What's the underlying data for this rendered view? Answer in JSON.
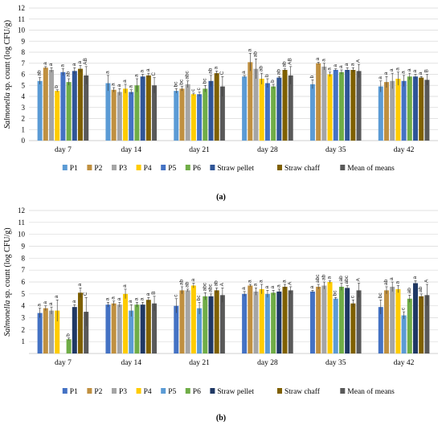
{
  "chart_data": [
    {
      "type": "bar",
      "panel_label": "(a)",
      "ylabel_prefix": "Salmonella",
      "ylabel_suffix": " sp. count (log CFU/g)",
      "ylim": [
        0,
        12
      ],
      "yticks": [
        0,
        1,
        2,
        3,
        4,
        5,
        6,
        7,
        8,
        9,
        10,
        11,
        12
      ],
      "grid": true,
      "legend_position": "bottom",
      "categories": [
        "day 7",
        "day 14",
        "day 21",
        "day 28",
        "day 35",
        "day 42"
      ],
      "series": [
        {
          "name": "P1",
          "color": "#5b9bd5",
          "values": [
            5.4,
            5.2,
            4.5,
            5.8,
            5.1,
            4.9
          ],
          "errors": [
            0.3,
            0.7,
            0.2,
            0.1,
            0.4,
            0.5
          ],
          "labels": [
            "ab",
            "a",
            "bc",
            "a",
            "b",
            "a"
          ]
        },
        {
          "name": "P2",
          "color": "#c09040",
          "values": [
            6.6,
            4.6,
            4.7,
            7.1,
            7.0,
            5.3
          ],
          "errors": [
            0.1,
            0.2,
            0.2,
            0.8,
            0.1,
            0.5
          ],
          "labels": [
            "a",
            "a",
            "bc",
            "a",
            "a",
            "a"
          ]
        },
        {
          "name": "P3",
          "color": "#a5a5a5",
          "values": [
            6.4,
            4.4,
            5.1,
            6.5,
            6.7,
            5.4
          ],
          "errors": [
            0.2,
            0.3,
            0.3,
            0.9,
            0.3,
            0.7
          ],
          "labels": [
            "a",
            "a",
            "abc",
            "ab",
            "a",
            "a"
          ]
        },
        {
          "name": "P4",
          "color": "#ffcc00",
          "values": [
            4.5,
            4.7,
            4.2,
            5.6,
            6.0,
            5.6
          ],
          "errors": [
            0.1,
            0.4,
            0.1,
            0.5,
            0.2,
            0.6
          ],
          "labels": [
            "b",
            "a",
            "c",
            "ab",
            "a",
            "a"
          ]
        },
        {
          "name": "P5",
          "color": "#4472c4",
          "values": [
            6.2,
            4.4,
            4.2,
            5.2,
            6.4,
            5.4
          ],
          "errors": [
            0.3,
            0.2,
            0.2,
            0.4,
            0.1,
            0.5
          ],
          "labels": [
            "a",
            "a",
            "c",
            "b",
            "a",
            "a"
          ]
        },
        {
          "name": "P6",
          "color": "#70ad47",
          "values": [
            5.3,
            5.0,
            4.7,
            4.9,
            6.2,
            5.8
          ],
          "errors": [
            0.3,
            0.6,
            0.3,
            0.2,
            0.2,
            0.3
          ],
          "labels": [
            "ab",
            "a",
            "bc",
            "b",
            "a",
            "a"
          ]
        },
        {
          "name": "Straw pellet",
          "color": "#2f5597",
          "values": [
            6.3,
            5.8,
            5.4,
            5.7,
            6.4,
            5.8
          ],
          "errors": [
            0.3,
            0.2,
            0.5,
            0.1,
            0.2,
            0.2
          ],
          "labels": [
            "a",
            "a",
            "ab",
            "ab",
            "a",
            "a"
          ]
        },
        {
          "name": "Straw chaff",
          "color": "#7f6000",
          "values": [
            6.5,
            5.9,
            6.1,
            6.4,
            6.4,
            5.7
          ],
          "errors": [
            0.3,
            0.2,
            0.2,
            0.1,
            0.2,
            0.1
          ],
          "labels": [
            "a",
            "a",
            "a",
            "ab",
            "a",
            "a"
          ]
        },
        {
          "name": "Mean of means",
          "color": "#595959",
          "values": [
            5.9,
            5.0,
            4.9,
            5.9,
            6.3,
            5.5
          ],
          "errors": [
            0.8,
            0.7,
            0.9,
            0.8,
            0.6,
            0.5
          ],
          "labels": [
            "AB",
            "C",
            "C",
            "AB",
            "A",
            "B"
          ]
        }
      ]
    },
    {
      "type": "bar",
      "panel_label": "(b)",
      "ylabel_prefix": "Salmonella",
      "ylabel_suffix": " sp. count (log CFU/g)",
      "ylim": [
        0,
        12
      ],
      "yticks": [
        1,
        2,
        3,
        4,
        5,
        6,
        7,
        8,
        9,
        10,
        11,
        12
      ],
      "grid": true,
      "legend_position": "bottom",
      "categories": [
        "day 7",
        "day 14",
        "day 21",
        "day 28",
        "day 35",
        "day 42"
      ],
      "series": [
        {
          "name": "P1",
          "color": "#4472c4",
          "values": [
            3.4,
            4.1,
            4.0,
            5.0,
            5.2,
            3.9
          ],
          "errors": [
            0.4,
            0.2,
            0.6,
            0.2,
            0.1,
            0.6
          ],
          "labels": [
            "a",
            "a",
            "c",
            "a",
            "a",
            "bc"
          ]
        },
        {
          "name": "P2",
          "color": "#c09040",
          "values": [
            3.8,
            4.2,
            5.3,
            5.7,
            5.6,
            5.3
          ],
          "errors": [
            0.2,
            0.2,
            0.3,
            0.1,
            0.2,
            0.3
          ],
          "labels": [
            "a",
            "a",
            "ab",
            "a",
            "abc",
            "ab"
          ]
        },
        {
          "name": "P3",
          "color": "#a5a5a5",
          "values": [
            3.6,
            4.1,
            5.3,
            5.2,
            5.7,
            5.6
          ],
          "errors": [
            0.3,
            0.2,
            0.1,
            0.3,
            0.3,
            0.4
          ],
          "labels": [
            "a",
            "a",
            "ab",
            "a",
            "ab",
            "a"
          ]
        },
        {
          "name": "P4",
          "color": "#ffcc00",
          "values": [
            3.6,
            5.0,
            5.7,
            5.4,
            6.0,
            5.4
          ],
          "errors": [
            0.9,
            0.4,
            0.2,
            0.4,
            0.1,
            0.3
          ],
          "labels": [
            "a",
            "a",
            "a",
            "a",
            "a",
            "a"
          ]
        },
        {
          "name": "P5",
          "color": "#5b9bd5",
          "values": [
            0.0,
            3.6,
            3.8,
            5.0,
            4.6,
            3.2
          ],
          "errors": [
            0.0,
            0.5,
            0.5,
            0.3,
            0.1,
            0.3
          ],
          "labels": [
            "",
            "a",
            "bc",
            "a",
            "bc",
            "c"
          ]
        },
        {
          "name": "P6",
          "color": "#70ad47",
          "values": [
            1.2,
            4.1,
            4.8,
            5.1,
            5.6,
            4.6
          ],
          "errors": [
            0.1,
            0.2,
            0.3,
            0.2,
            0.3,
            0.3
          ],
          "labels": [
            "b",
            "a",
            "abc",
            "a",
            "ab",
            "ab"
          ]
        },
        {
          "name": "Straw pellet",
          "color": "#1f3864",
          "values": [
            3.9,
            4.1,
            4.8,
            5.2,
            5.5,
            5.9
          ],
          "errors": [
            0.2,
            0.2,
            0.2,
            0.2,
            0.2,
            0.2
          ],
          "labels": [
            "a",
            "a",
            "abc",
            "a",
            "abc",
            "a"
          ]
        },
        {
          "name": "Straw chaff",
          "color": "#7f6000",
          "values": [
            5.1,
            4.5,
            5.3,
            5.6,
            4.2,
            4.8
          ],
          "errors": [
            0.4,
            0.2,
            0.2,
            0.2,
            0.3,
            0.2
          ],
          "labels": [
            "a",
            "a",
            "ab",
            "a",
            "c",
            "ab"
          ]
        },
        {
          "name": "Mean of means",
          "color": "#595959",
          "values": [
            3.5,
            4.2,
            4.9,
            5.3,
            5.3,
            4.9
          ],
          "errors": [
            1.2,
            0.6,
            0.6,
            0.3,
            0.6,
            0.9
          ],
          "labels": [
            "C",
            "B",
            "A",
            "A",
            "A",
            "A"
          ]
        }
      ]
    }
  ]
}
